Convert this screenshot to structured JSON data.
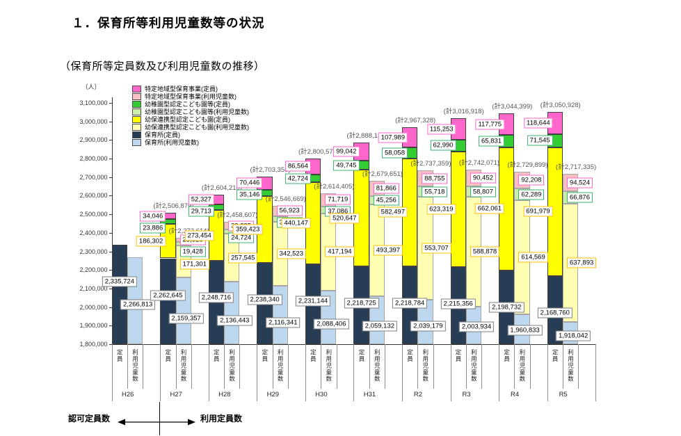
{
  "page": {
    "title": "１．保育所等利用児童数等の状況",
    "subtitle": "（保育所等定員数及び利用児童数の推移）"
  },
  "chart_data": {
    "type": "bar",
    "stacked": true,
    "unit_label": "（人）",
    "y_axis": {
      "min": 1800000,
      "max": 3100000,
      "tick_step": 100000
    },
    "categories": [
      "H26",
      "H27",
      "H28",
      "H29",
      "H30",
      "H31",
      "R2",
      "R3",
      "R4",
      "R5"
    ],
    "bar_sublabels": [
      "定員",
      "利用児童数"
    ],
    "total_label_prefix": "(計",
    "total_label_suffix": ")",
    "legend": [
      {
        "label": "特定地域型保育事業(定員)",
        "color": "#FF66CC"
      },
      {
        "label": "特定地域型保育事業(利用児童数)",
        "color": "#F7C1C1"
      },
      {
        "label": "幼稚園型認定こども園等(定員)",
        "color": "#33CC33"
      },
      {
        "label": "幼稚園型認定こども園等(利用児童数)",
        "color": "#CCEEAA"
      },
      {
        "label": "幼保連携型認定こども園(定員)",
        "color": "#FFFF00"
      },
      {
        "label": "幼保連携型認定こども園(利用児童数)",
        "color": "#FFFFB3"
      },
      {
        "label": "保育所(定員)",
        "color": "#273D56"
      },
      {
        "label": "保育所(利用児童数)",
        "color": "#BDD7EE"
      }
    ],
    "label_border_colors": {
      "tokutei": "#FF66CC",
      "yochien": "#3CB371",
      "yoho": "#FFC000",
      "hoikusho": "#7f7f7f"
    },
    "series_order_bottom_to_top": [
      "保育所",
      "幼保連携型認定こども園",
      "幼稚園型認定こども園等",
      "特定地域型保育事業"
    ],
    "groups": [
      {
        "year": "H26",
        "capacity": {
          "hoikusho": 2335724,
          "yoho": null,
          "yochien": null,
          "tokutei": null,
          "total": null
        },
        "usage": {
          "hoikusho": 2266813,
          "yoho": null,
          "yochien": null,
          "tokutei": null,
          "total": null
        }
      },
      {
        "year": "H27",
        "capacity": {
          "hoikusho": 2262645,
          "yoho": 186302,
          "yochien": 23886,
          "tokutei": 34046,
          "total": 2506879
        },
        "usage": {
          "hoikusho": 2159357,
          "yoho": 171301,
          "yochien": 19428,
          "tokutei": 23528,
          "total": 2373614
        }
      },
      {
        "year": "H28",
        "capacity": {
          "hoikusho": 2248716,
          "yoho": 273454,
          "yochien": 29713,
          "tokutei": 52327,
          "total": 2604210
        },
        "usage": {
          "hoikusho": 2136443,
          "yoho": 257545,
          "yochien": 24724,
          "tokutei": 39895,
          "total": 2458607
        }
      },
      {
        "year": "H29",
        "capacity": {
          "hoikusho": 2238340,
          "yoho": 359423,
          "yochien": 35146,
          "tokutei": 70446,
          "total": 2703355
        },
        "usage": {
          "hoikusho": 2116341,
          "yoho": 342523,
          "yochien": 30882,
          "tokutei": 56923,
          "total": 2546669
        }
      },
      {
        "year": "H30",
        "capacity": {
          "hoikusho": 2231144,
          "yoho": 440147,
          "yochien": 42724,
          "tokutei": 86564,
          "total": 2800579
        },
        "usage": {
          "hoikusho": 2088406,
          "yoho": 417194,
          "yochien": 37086,
          "tokutei": 71719,
          "total": 2614405
        }
      },
      {
        "year": "H31",
        "capacity": {
          "hoikusho": 2218725,
          "yoho": 520647,
          "yochien": 49745,
          "tokutei": 99042,
          "total": 2888159
        },
        "usage": {
          "hoikusho": 2059132,
          "yoho": 493397,
          "yochien": 45256,
          "tokutei": 81866,
          "total": 2679651
        }
      },
      {
        "year": "R2",
        "capacity": {
          "hoikusho": 2218784,
          "yoho": 582497,
          "yochien": 58058,
          "tokutei": 107989,
          "total": 2967328
        },
        "usage": {
          "hoikusho": 2039179,
          "yoho": 553707,
          "yochien": 55718,
          "tokutei": 88755,
          "total": 2737359
        }
      },
      {
        "year": "R3",
        "capacity": {
          "hoikusho": 2215356,
          "yoho": 623319,
          "yochien": 62990,
          "tokutei": 115253,
          "total": 3016918
        },
        "usage": {
          "hoikusho": 2003934,
          "yoho": 588878,
          "yochien": 58807,
          "tokutei": 90452,
          "total": 2742071
        }
      },
      {
        "year": "R4",
        "capacity": {
          "hoikusho": 2198732,
          "yoho": 662061,
          "yochien": 65831,
          "tokutei": 117775,
          "total": 3044399
        },
        "usage": {
          "hoikusho": 1960833,
          "yoho": 614569,
          "yochien": 62289,
          "tokutei": 92208,
          "total": 2729899
        }
      },
      {
        "year": "R5",
        "capacity": {
          "hoikusho": 2168760,
          "yoho": 691979,
          "yochien": 71545,
          "tokutei": 118644,
          "total": 3050928
        },
        "usage": {
          "hoikusho": 1918042,
          "yoho": 637893,
          "yochien": 66876,
          "tokutei": 94524,
          "total": 2717335
        }
      }
    ],
    "bottom_annotation": {
      "left": "認可定員数",
      "right": "利用定員数"
    }
  }
}
